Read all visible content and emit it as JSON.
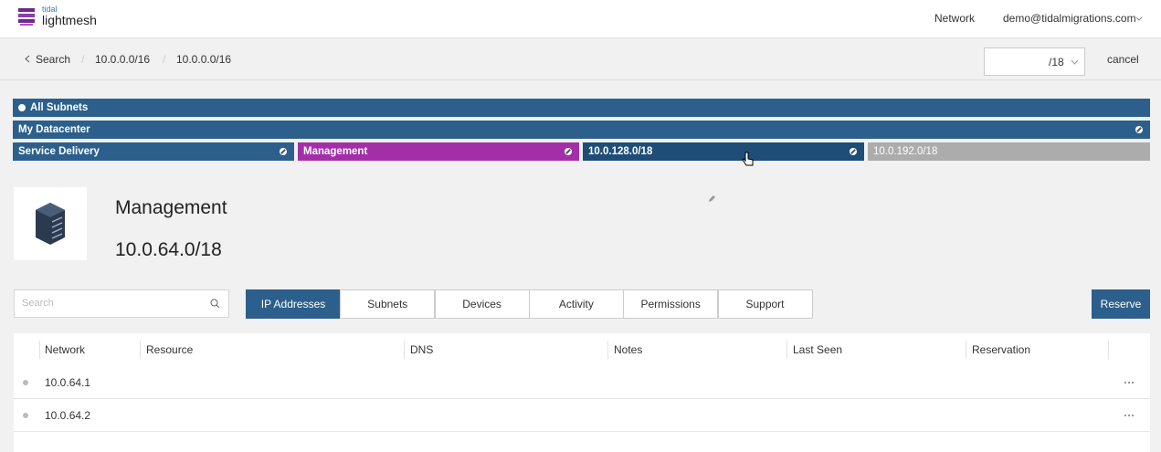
{
  "header": {
    "logo_small": "tidal",
    "logo": "lightmesh",
    "nav": "Network",
    "user": "demo@tidalmigrations.com"
  },
  "breadcrumb": {
    "back": "Search",
    "items": [
      "10.0.0.0/16",
      "10.0.0.0/16"
    ],
    "prefix_select": "/18",
    "cancel": "cancel"
  },
  "subnet_tree": {
    "root": "All Subnets",
    "level1": "My Datacenter",
    "level2": [
      "Service Delivery",
      "Management",
      "10.0.128.0/18",
      "10.0.192.0/18"
    ]
  },
  "detail": {
    "name": "Management",
    "cidr": "10.0.64.0/18"
  },
  "search_placeholder": "Search",
  "tabs": [
    "IP Addresses",
    "Subnets",
    "Devices",
    "Activity",
    "Permissions",
    "Support"
  ],
  "reserve": "Reserve",
  "table": {
    "columns": [
      "Network",
      "Resource",
      "DNS",
      "Notes",
      "Last Seen",
      "Reservation"
    ],
    "rows": [
      [
        "10.0.64.1"
      ],
      [
        "10.0.64.2"
      ]
    ]
  }
}
